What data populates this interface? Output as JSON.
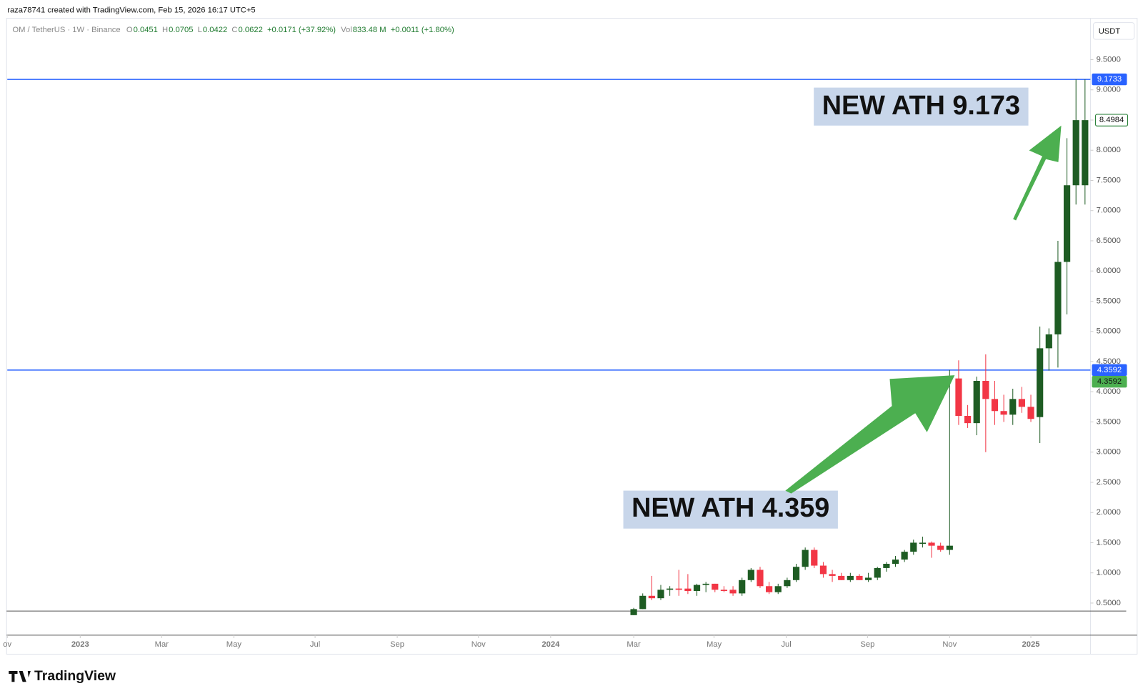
{
  "header": "raza78741 created with TradingView.com, Feb 15, 2026 16:17 UTC+5",
  "legend": {
    "symbol": "OM / TetherUS · 1W · Binance",
    "ohlc": [
      {
        "label": "O",
        "value": "0.0451"
      },
      {
        "label": "H",
        "value": "0.0705"
      },
      {
        "label": "L",
        "value": "0.0422"
      },
      {
        "label": "C",
        "value": "0.0622"
      }
    ],
    "change": "+0.0171 (+37.92%)",
    "volume": {
      "label": "Vol",
      "value": "833.48 M",
      "change": "+0.0011 (+1.80%)"
    }
  },
  "currency": "USDT",
  "logo": "TradingView",
  "chart_data": {
    "type": "candlestick",
    "annotations": [
      "NEW ATH 9.173",
      "NEW ATH 4.359"
    ],
    "up_color": "#1e5c23",
    "down_color": "#f23645",
    "xlim": [
      0,
      120
    ],
    "ylim": [
      -0.032,
      10.186
    ],
    "xticks": [
      {
        "value": 0,
        "label": "ov"
      },
      {
        "value": 8.08,
        "label": "2023"
      },
      {
        "value": 17.1,
        "label": "Mar"
      },
      {
        "value": 25.1,
        "label": "May"
      },
      {
        "value": 34.1,
        "label": "Jul"
      },
      {
        "value": 43.2,
        "label": "Sep"
      },
      {
        "value": 52.2,
        "label": "Nov"
      },
      {
        "value": 60.2,
        "label": "2024"
      },
      {
        "value": 69.4,
        "label": "Mar"
      },
      {
        "value": 78.3,
        "label": "May"
      },
      {
        "value": 86.3,
        "label": "Jul"
      },
      {
        "value": 95.3,
        "label": "Sep"
      },
      {
        "value": 104.4,
        "label": "Nov"
      },
      {
        "value": 113.4,
        "label": "2025"
      }
    ],
    "yticks": [
      {
        "value": 0.5,
        "label": "0.5000"
      },
      {
        "value": 1,
        "label": "1.0000"
      },
      {
        "value": 1.5,
        "label": "1.5000"
      },
      {
        "value": 2,
        "label": "2.0000"
      },
      {
        "value": 2.5,
        "label": "2.5000"
      },
      {
        "value": 3,
        "label": "3.0000"
      },
      {
        "value": 3.5,
        "label": "3.5000"
      },
      {
        "value": 4,
        "label": "4.0000"
      },
      {
        "value": 4.5,
        "label": "4.5000"
      },
      {
        "value": 5,
        "label": "5.0000"
      },
      {
        "value": 5.5,
        "label": "5.5000"
      },
      {
        "value": 6,
        "label": "6.0000"
      },
      {
        "value": 6.5,
        "label": "6.5000"
      },
      {
        "value": 7,
        "label": "7.0000"
      },
      {
        "value": 7.5,
        "label": "7.5000"
      },
      {
        "value": 8,
        "label": "8.0000"
      },
      {
        "value": 8.5,
        "label": "8.5000"
      },
      {
        "value": 9,
        "label": "9.0000"
      },
      {
        "value": 9.5,
        "label": "9.5000"
      }
    ],
    "hlines": [
      {
        "value": 9.1733,
        "label": "9.1733",
        "color": "#2962ff"
      },
      {
        "value": 4.3592,
        "label": "4.3592",
        "color": "#2962ff"
      }
    ],
    "last_price": {
      "value": 4.3592,
      "label": "4.3592",
      "color": "#4caf50"
    },
    "close_tag": {
      "value": 8.4984,
      "label": "8.4984",
      "color": "#1e7a2e"
    },
    "x": [
      69.4,
      70.4,
      71.4,
      72.4,
      73.4,
      74.4,
      75.4,
      76.4,
      77.4,
      78.4,
      79.4,
      80.4,
      81.4,
      82.4,
      83.4,
      84.4,
      85.4,
      86.4,
      87.4,
      88.4,
      89.4,
      90.4,
      91.4,
      92.4,
      93.4,
      94.4,
      95.4,
      96.4,
      97.4,
      98.4,
      99.4,
      100.4,
      101.4,
      102.4,
      103.4,
      104.4,
      105.4,
      106.4,
      107.4,
      108.4,
      109.4,
      110.4,
      111.4,
      112.4,
      113.4,
      114.4,
      115.4,
      116.4,
      117.4,
      118.4,
      119.4
    ],
    "open": [
      0.3,
      0.4,
      0.62,
      0.58,
      0.72,
      0.74,
      0.74,
      0.7,
      0.8,
      0.82,
      0.72,
      0.72,
      0.66,
      0.88,
      1.05,
      0.78,
      0.68,
      0.78,
      0.88,
      1.1,
      1.38,
      1.12,
      0.98,
      0.95,
      0.88,
      0.95,
      0.88,
      0.92,
      1.08,
      1.15,
      1.22,
      1.35,
      1.48,
      1.5,
      1.45,
      1.38,
      4.22,
      3.6,
      3.48,
      4.18,
      3.88,
      3.68,
      3.62,
      3.88,
      3.75,
      3.58,
      4.72,
      4.95,
      6.15,
      7.42,
      7.42
    ],
    "high": [
      0.42,
      0.66,
      0.95,
      0.8,
      0.78,
      1.05,
      0.98,
      0.82,
      0.85,
      0.82,
      0.78,
      0.78,
      0.92,
      1.08,
      1.1,
      0.85,
      0.82,
      0.92,
      1.15,
      1.42,
      1.42,
      1.18,
      1.05,
      1.0,
      1.0,
      0.98,
      1.0,
      1.1,
      1.18,
      1.28,
      1.38,
      1.55,
      1.6,
      1.52,
      1.5,
      4.36,
      4.52,
      3.78,
      4.25,
      4.62,
      4.18,
      3.95,
      4.05,
      4.08,
      3.95,
      5.08,
      5.05,
      6.5,
      8.2,
      9.1733,
      9.1733
    ],
    "low": [
      0.3,
      0.4,
      0.55,
      0.55,
      0.62,
      0.62,
      0.65,
      0.62,
      0.68,
      0.68,
      0.68,
      0.62,
      0.62,
      0.85,
      0.75,
      0.65,
      0.65,
      0.75,
      0.85,
      1.05,
      1.08,
      0.92,
      0.85,
      0.88,
      0.85,
      0.88,
      0.85,
      0.88,
      1.02,
      1.1,
      1.18,
      1.3,
      1.42,
      1.25,
      1.35,
      1.3,
      3.45,
      3.4,
      3.28,
      3.0,
      3.45,
      3.5,
      3.45,
      3.65,
      3.5,
      3.15,
      4.35,
      4.4,
      5.28,
      7.1,
      7.1
    ],
    "close": [
      0.4,
      0.62,
      0.58,
      0.72,
      0.74,
      0.72,
      0.7,
      0.8,
      0.82,
      0.72,
      0.7,
      0.66,
      0.88,
      1.05,
      0.78,
      0.68,
      0.78,
      0.88,
      1.1,
      1.38,
      1.12,
      0.98,
      0.95,
      0.88,
      0.95,
      0.88,
      0.92,
      1.08,
      1.15,
      1.22,
      1.35,
      1.5,
      1.5,
      1.45,
      1.38,
      1.45,
      3.6,
      3.48,
      4.18,
      3.88,
      3.68,
      3.62,
      3.88,
      3.75,
      3.55,
      4.72,
      4.95,
      6.15,
      7.42,
      8.4984,
      8.4984
    ]
  }
}
